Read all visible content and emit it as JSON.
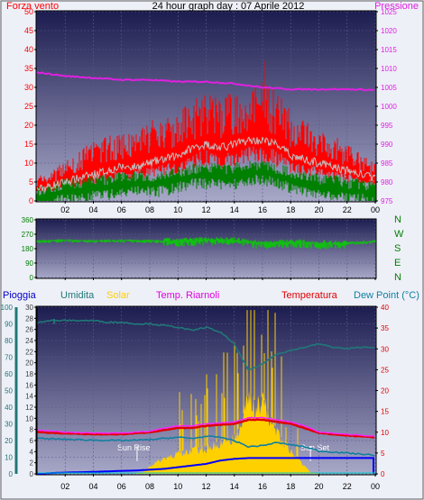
{
  "header": {
    "wind_label": "Forza vento",
    "title": "24 hour graph day : 07 Aprile 2012",
    "pressure_label": "Pressione"
  },
  "colors": {
    "wind": "#ff0000",
    "pressure": "#e020e0",
    "gust": "#008000",
    "avg": "#c0c0c0",
    "dir": "#10c010",
    "rain": "#008080",
    "humidity": "#207878",
    "solar": "#ffd000",
    "dew": "#1080a0",
    "temp_red": "#e00000",
    "heat": "#ff20ff",
    "rain_blue": "#0000ff",
    "cyan": "#00d0d0"
  },
  "chart_data": [
    {
      "type": "line",
      "title": "24 hour graph day : 07 Aprile 2012",
      "x_ticks": [
        "02",
        "04",
        "06",
        "08",
        "10",
        "12",
        "14",
        "16",
        "18",
        "20",
        "22",
        "00"
      ],
      "x_range_hours": [
        0,
        24
      ],
      "ylabel": "Forza vento",
      "ylim": [
        0,
        50
      ],
      "y_ticks": [
        0,
        5,
        10,
        15,
        20,
        25,
        30,
        35,
        40,
        45,
        50
      ],
      "ylabel_right": "Pressione",
      "ylim_right": [
        975,
        1025
      ],
      "y_ticks_right": [
        975,
        980,
        985,
        990,
        995,
        1000,
        1005,
        1010,
        1015,
        1020,
        1025
      ],
      "series": [
        {
          "name": "Forza vento",
          "axis": "left",
          "x": [
            0,
            1,
            2,
            3,
            4,
            5,
            6,
            7,
            8,
            9,
            10,
            11,
            12,
            13,
            14,
            15,
            16,
            17,
            18,
            19,
            20,
            21,
            22,
            23,
            24
          ],
          "values": [
            5,
            6,
            8,
            10,
            12,
            13,
            14,
            14,
            16,
            17,
            18,
            20,
            22,
            21,
            22,
            23,
            24,
            22,
            18,
            16,
            14,
            13,
            12,
            10,
            8
          ]
        },
        {
          "name": "Media",
          "axis": "left",
          "x": [
            0,
            1,
            2,
            3,
            4,
            5,
            6,
            7,
            8,
            9,
            10,
            11,
            12,
            13,
            14,
            15,
            16,
            17,
            18,
            19,
            20,
            21,
            22,
            23,
            24
          ],
          "values": [
            3,
            4,
            5,
            6,
            7,
            8,
            9,
            9,
            10,
            11,
            12,
            14,
            15,
            14,
            15,
            16,
            16,
            15,
            12,
            11,
            10,
            9,
            8,
            7,
            6
          ]
        },
        {
          "name": "Raffica",
          "axis": "left",
          "x": [
            0,
            1,
            2,
            3,
            4,
            5,
            6,
            7,
            8,
            9,
            10,
            11,
            12,
            13,
            14,
            15,
            16,
            17,
            18,
            19,
            20,
            21,
            22,
            23,
            24
          ],
          "values": [
            2,
            3,
            4,
            4,
            5,
            5,
            6,
            6,
            6,
            6,
            7,
            8,
            8,
            8,
            8,
            9,
            9,
            8,
            7,
            6,
            5,
            5,
            4,
            4,
            3
          ]
        },
        {
          "name": "Pressione",
          "axis": "right",
          "x": [
            0,
            2,
            4,
            6,
            8,
            10,
            12,
            14,
            16,
            18,
            20,
            22,
            24
          ],
          "values": [
            1009,
            1008,
            1007.5,
            1007,
            1007,
            1006.5,
            1006.5,
            1006,
            1005,
            1004.5,
            1004.5,
            1004.5,
            1004.3
          ]
        }
      ],
      "peak_gust": 37
    },
    {
      "type": "scatter",
      "x_range_hours": [
        0,
        24
      ],
      "ylabel": "Direzione",
      "ylim": [
        0,
        360
      ],
      "y_ticks": [
        0,
        90,
        180,
        270,
        360
      ],
      "compass_labels": [
        "N",
        "W",
        "S",
        "E",
        "N"
      ],
      "series": [
        {
          "name": "Direzione vento",
          "x": [
            0,
            2,
            4,
            6,
            8,
            10,
            12,
            14,
            16,
            18,
            20,
            22,
            24
          ],
          "values": [
            225,
            232,
            228,
            230,
            228,
            225,
            235,
            230,
            210,
            220,
            210,
            215,
            225
          ]
        }
      ]
    },
    {
      "type": "line",
      "labels": {
        "rain": "Pioggia",
        "humidity": "Umidita",
        "solar": "Solar",
        "heat": "Temp. Riarnoli",
        "temperature": "Temperatura",
        "dew": "Dew Point (°C)"
      },
      "x_ticks": [
        "02",
        "04",
        "06",
        "08",
        "10",
        "12",
        "14",
        "16",
        "18",
        "20",
        "22",
        "00"
      ],
      "x_range_hours": [
        0,
        24
      ],
      "y_rain_ticks": [
        0,
        10,
        20,
        30,
        40,
        50,
        60,
        70,
        80,
        90,
        100
      ],
      "ylim_rain": [
        0,
        100
      ],
      "y_hum_ticks": [
        0,
        2,
        4,
        6,
        8,
        10,
        12,
        14,
        16,
        18,
        20,
        22,
        24,
        26,
        28,
        30
      ],
      "ylim_hum": [
        0,
        30
      ],
      "y_temp_ticks": [
        0,
        5,
        10,
        15,
        20,
        25,
        30,
        35,
        40
      ],
      "ylim_temp": [
        0,
        40
      ],
      "annotations": {
        "sun_rise": "Sun Rise",
        "sun_set": "Sun Set"
      },
      "sun_rise_hour": 7.1,
      "sun_set_hour": 19.4,
      "series": [
        {
          "name": "Umidita",
          "axis": "rain",
          "x": [
            0,
            1,
            2,
            3,
            4,
            5,
            6,
            7,
            8,
            9,
            10,
            11,
            12,
            13,
            14,
            15,
            16,
            17,
            18,
            19,
            20,
            21,
            22,
            23,
            24
          ],
          "values": [
            91,
            92,
            92,
            92,
            92,
            91,
            91,
            90,
            90,
            89,
            88,
            86,
            88,
            85,
            78,
            62,
            66,
            72,
            74,
            76,
            78,
            76,
            75,
            76,
            76
          ]
        },
        {
          "name": "Solar",
          "axis": "hum",
          "x": [
            0,
            6.9,
            7.5,
            8,
            9,
            10,
            11,
            12,
            13,
            14,
            14.5,
            15,
            15.5,
            16,
            16.5,
            17,
            17.5,
            18,
            18.5,
            19,
            19.4,
            20,
            24
          ],
          "values": [
            0,
            0,
            0.3,
            1.5,
            3,
            4,
            4.5,
            5,
            6,
            7,
            9,
            15,
            13,
            14,
            11,
            8,
            6,
            4.5,
            3,
            1.5,
            0.3,
            0,
            0
          ]
        },
        {
          "name": "Temp. Riarnoli",
          "axis": "temp",
          "x": [
            0,
            2,
            4,
            6,
            8,
            9,
            10,
            11,
            12,
            13,
            14,
            15,
            16,
            17,
            18,
            19,
            20,
            22,
            24
          ],
          "values": [
            10.5,
            10,
            9.8,
            9.8,
            10.2,
            11,
            11.5,
            11.5,
            12,
            12.2,
            12.5,
            13.5,
            13.5,
            13,
            12.5,
            11.5,
            10,
            9.5,
            9
          ]
        },
        {
          "name": "Temperatura",
          "axis": "temp",
          "x": [
            0,
            2,
            4,
            6,
            8,
            9,
            10,
            11,
            12,
            13,
            14,
            15,
            16,
            17,
            18,
            19,
            20,
            22,
            24
          ],
          "values": [
            10,
            9.7,
            9.5,
            9.5,
            10,
            10.5,
            11,
            11,
            11.5,
            11.8,
            12,
            13,
            13,
            12.5,
            12,
            11,
            9.8,
            9.2,
            8.8
          ]
        },
        {
          "name": "Dew Point (°C)",
          "axis": "temp",
          "x": [
            0,
            2,
            4,
            6,
            8,
            9,
            10,
            11,
            12,
            13,
            14,
            15,
            16,
            17,
            18,
            19,
            20,
            22,
            24
          ],
          "values": [
            8.5,
            8.3,
            8.1,
            8,
            8.2,
            8.5,
            8.8,
            8.5,
            9,
            8.8,
            8,
            6.5,
            6.8,
            7.5,
            7,
            6.5,
            5.5,
            5,
            4.5
          ]
        },
        {
          "name": "Pioggia",
          "axis": "rain",
          "x": [
            0,
            1,
            2,
            3,
            4,
            5,
            6,
            7,
            8,
            9,
            10,
            11,
            12,
            13,
            14,
            15,
            16,
            17,
            18,
            19,
            20,
            21,
            22,
            23,
            24
          ],
          "values": [
            0,
            0.5,
            0.8,
            1,
            1.2,
            1.5,
            1.8,
            2,
            2.5,
            3,
            4,
            5,
            6,
            8,
            9,
            9.5,
            9.5,
            9.5,
            9.5,
            9.5,
            9.5,
            9.5,
            9.5,
            9.5,
            9.5
          ]
        }
      ]
    }
  ]
}
